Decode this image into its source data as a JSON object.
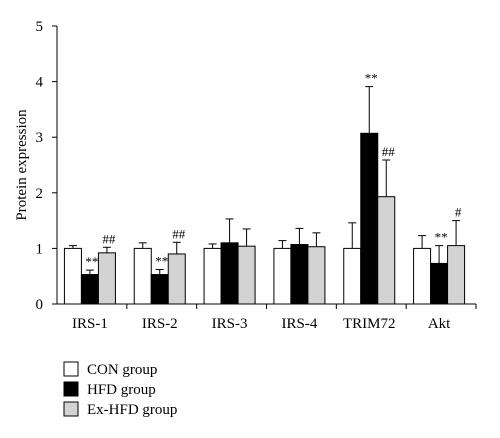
{
  "chart_data": {
    "type": "bar",
    "ylabel": "Protein expression",
    "ylim": [
      0,
      5
    ],
    "yticks": [
      "0",
      "1",
      "2",
      "3",
      "4",
      "5"
    ],
    "categories": [
      "IRS-1",
      "IRS-2",
      "IRS-3",
      "IRS-4",
      "TRIM72",
      "Akt"
    ],
    "series": [
      {
        "name": "CON group",
        "color": "#ffffff",
        "values": [
          1.0,
          1.0,
          1.0,
          1.0,
          1.0,
          1.0
        ],
        "errors": [
          0.05,
          0.1,
          0.08,
          0.14,
          0.46,
          0.23
        ],
        "annotations": [
          "",
          "",
          "",
          "",
          "",
          ""
        ]
      },
      {
        "name": "HFD group",
        "color": "#000000",
        "values": [
          0.53,
          0.53,
          1.1,
          1.07,
          3.07,
          0.73
        ],
        "errors": [
          0.08,
          0.09,
          0.43,
          0.29,
          0.84,
          0.32
        ],
        "annotations": [
          "**",
          "**",
          "",
          "",
          "**",
          "**"
        ]
      },
      {
        "name": "Ex-HFD group",
        "color": "#d3d3d3",
        "values": [
          0.92,
          0.9,
          1.04,
          1.03,
          1.93,
          1.05
        ],
        "errors": [
          0.1,
          0.21,
          0.31,
          0.25,
          0.66,
          0.45
        ],
        "annotations": [
          "##",
          "##",
          "",
          "",
          "##",
          "#"
        ]
      }
    ],
    "legend_position": "bottom-left"
  }
}
